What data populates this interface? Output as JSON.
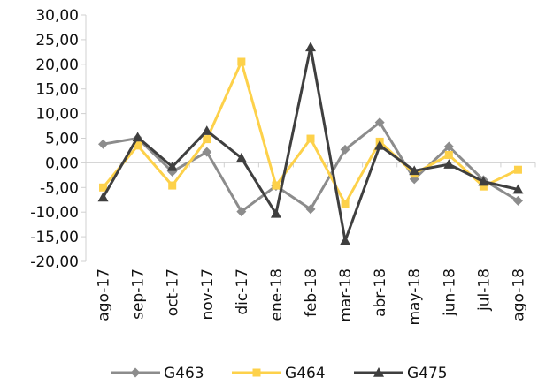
{
  "chart_data": {
    "type": "line",
    "categories": [
      "ago-17",
      "sep-17",
      "oct-17",
      "nov-17",
      "dic-17",
      "ene-18",
      "feb-18",
      "mar-18",
      "abr-18",
      "may-18",
      "jun-18",
      "jul-18",
      "ago-18"
    ],
    "ylim": [
      -20,
      30
    ],
    "yticks": [
      30,
      25,
      20,
      15,
      10,
      5,
      0,
      -5,
      -10,
      -15,
      -20
    ],
    "ytick_labels": [
      "30,00",
      "25,00",
      "20,00",
      "15,00",
      "10,00",
      "5,00",
      "0,00",
      "-5,00",
      "-10,00",
      "-15,00",
      "-20,00"
    ],
    "grid": false,
    "legend_position": "bottom",
    "series": [
      {
        "name": "G463",
        "color": "#8c8c8c",
        "marker": "diamond",
        "values": [
          3.8,
          5.0,
          -1.8,
          2.2,
          -9.9,
          -4.7,
          -9.4,
          2.7,
          8.2,
          -3.3,
          3.3,
          -3.5,
          -7.7
        ]
      },
      {
        "name": "G464",
        "color": "#fdd14a",
        "marker": "square",
        "values": [
          -5.0,
          3.5,
          -4.6,
          4.8,
          20.5,
          -4.6,
          4.9,
          -8.3,
          4.3,
          -2.2,
          1.6,
          -4.8,
          -1.4
        ]
      },
      {
        "name": "G475",
        "color": "#3f3f3f",
        "marker": "triangle",
        "values": [
          -7.0,
          5.2,
          -0.8,
          6.5,
          1.0,
          -10.3,
          23.5,
          -15.8,
          3.5,
          -1.6,
          -0.3,
          -3.8,
          -5.4
        ]
      }
    ]
  }
}
